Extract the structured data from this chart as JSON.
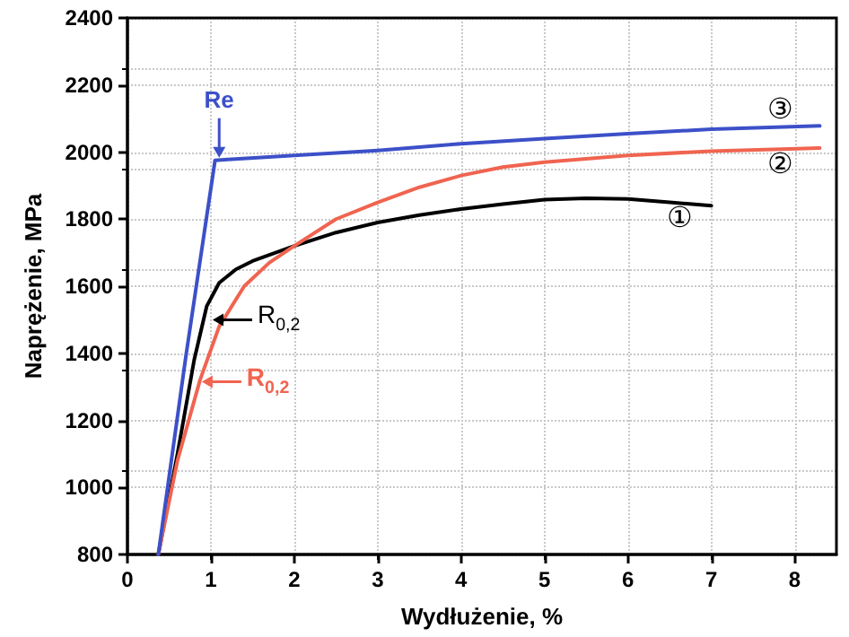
{
  "chart_data": {
    "type": "line",
    "xlabel": "Wydłużenie, %",
    "ylabel": "Naprężenie, MPa",
    "xlim": [
      0,
      8.5
    ],
    "xticks": [
      0,
      1,
      2,
      3,
      4,
      5,
      6,
      7,
      8
    ],
    "ylim": [
      800,
      2400
    ],
    "yticks": [
      800,
      1000,
      1200,
      1400,
      1600,
      1800,
      2000,
      2200,
      2400
    ],
    "grid": true,
    "marker": "none",
    "line_style": "solid",
    "series": [
      {
        "name": "①",
        "color": "#000000",
        "x": [
          0.37,
          0.6,
          0.8,
          0.95,
          1.1,
          1.3,
          1.5,
          2,
          2.5,
          3,
          3.5,
          4,
          4.5,
          5,
          5.5,
          6,
          6.5,
          7
        ],
        "values": [
          800,
          1100,
          1380,
          1540,
          1610,
          1650,
          1675,
          1720,
          1760,
          1790,
          1812,
          1830,
          1845,
          1858,
          1862,
          1860,
          1850,
          1840
        ]
      },
      {
        "name": "②",
        "color": "#f06450",
        "x": [
          0.37,
          0.6,
          0.87,
          1.1,
          1.4,
          1.7,
          2,
          2.5,
          3,
          3.5,
          4,
          4.5,
          5,
          6,
          7,
          8.3
        ],
        "values": [
          800,
          1080,
          1320,
          1480,
          1600,
          1670,
          1720,
          1800,
          1850,
          1895,
          1930,
          1955,
          1970,
          1990,
          2003,
          2012
        ]
      },
      {
        "name": "③",
        "color": "#3c50c8",
        "x": [
          0.37,
          0.7,
          1.05,
          1.2,
          2,
          3,
          4,
          5,
          6,
          7,
          8.3
        ],
        "values": [
          800,
          1390,
          1975,
          1978,
          1990,
          2005,
          2025,
          2040,
          2055,
          2068,
          2078
        ]
      }
    ],
    "annotations": [
      {
        "text": "Re",
        "x": 1.1,
        "y": 1978
      },
      {
        "text": "R$_{0,2}$",
        "x": 1.0,
        "y": 1500
      },
      {
        "text": "R$_{0,2}$",
        "x": 0.87,
        "y": 1315
      }
    ]
  }
}
